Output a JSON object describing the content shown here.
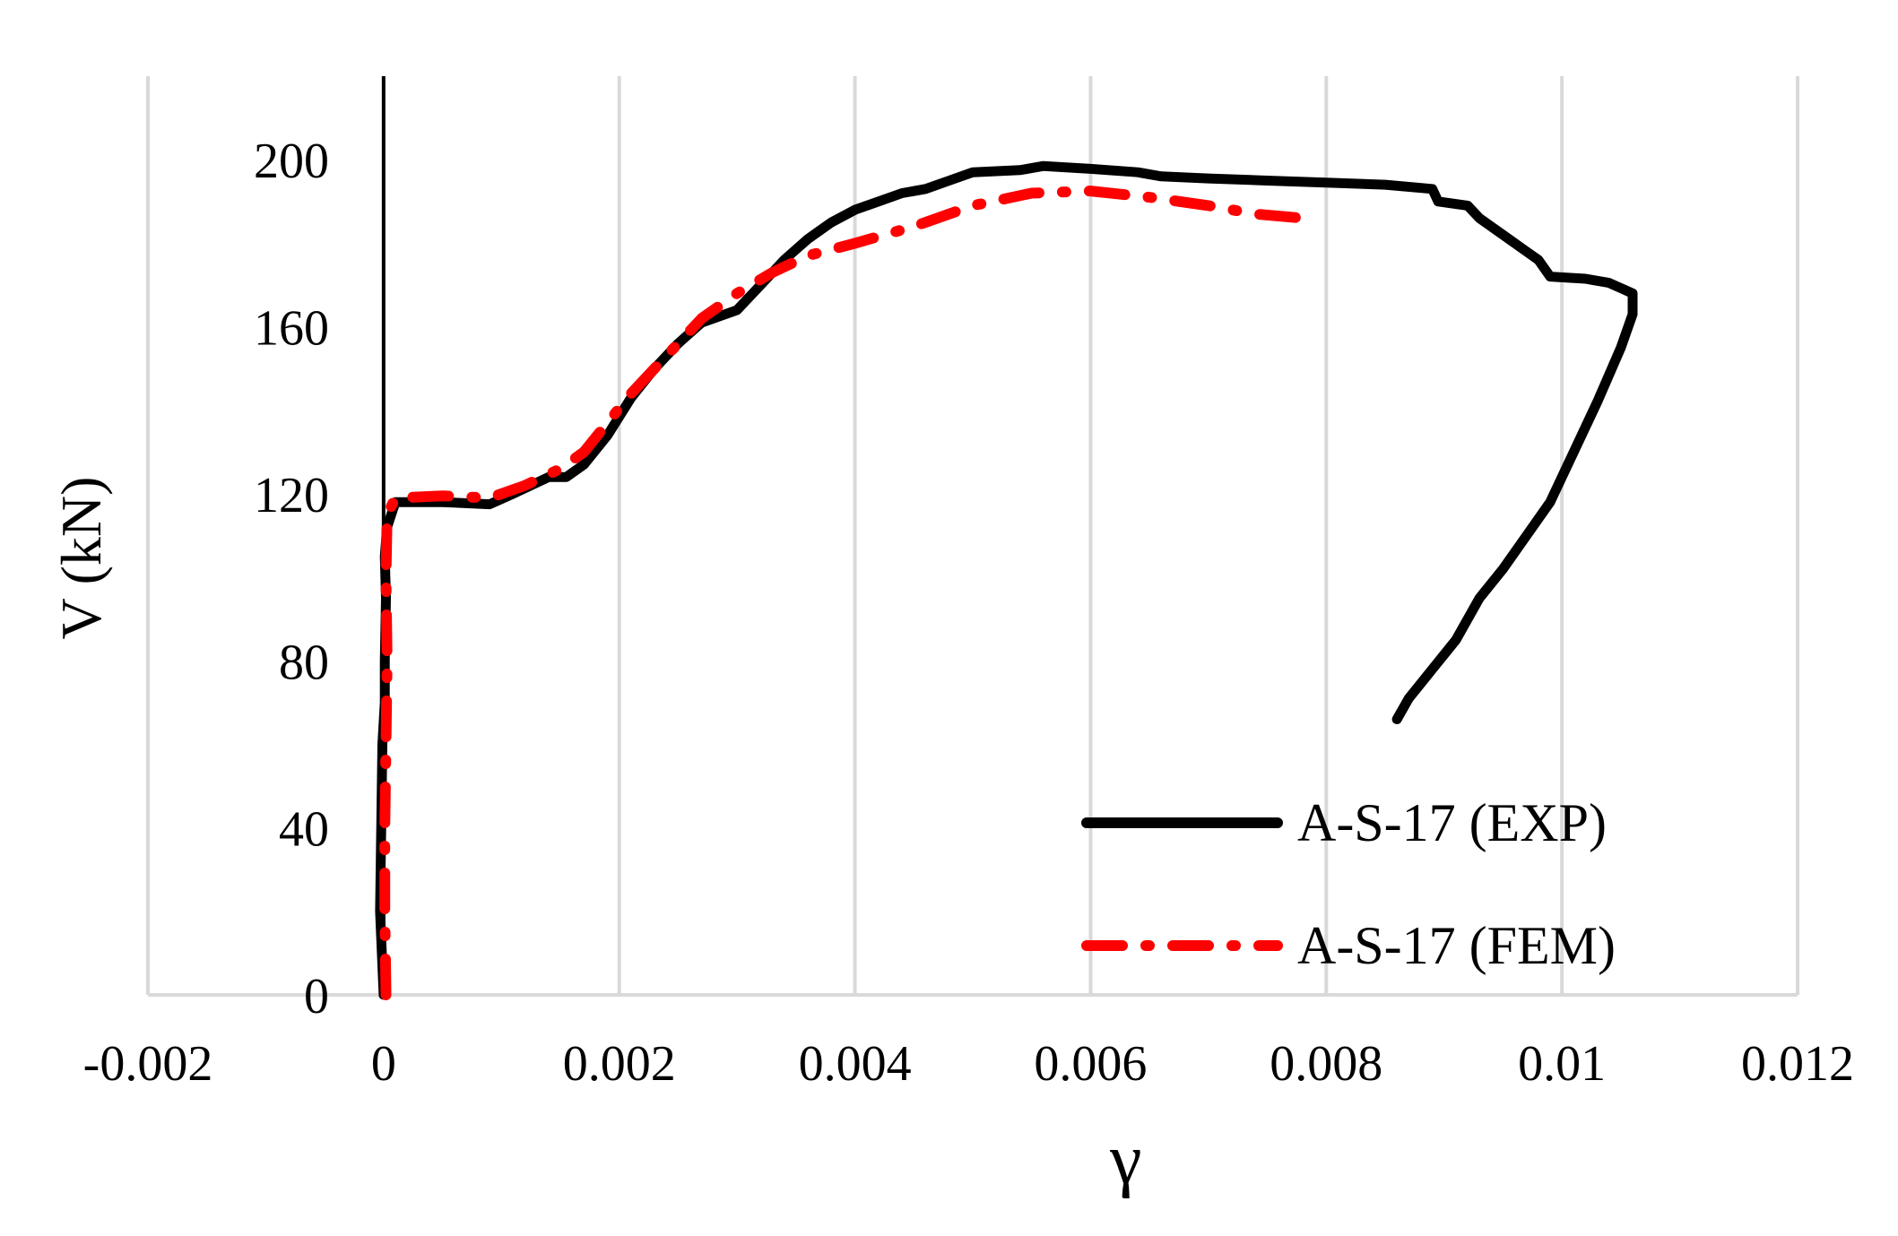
{
  "chart_data": {
    "type": "line",
    "title": "",
    "xlabel": "γ",
    "ylabel": "V (kN)",
    "xlim": [
      -0.002,
      0.012
    ],
    "ylim": [
      0,
      220
    ],
    "x_ticks": [
      -0.002,
      0,
      0.002,
      0.004,
      0.006,
      0.008,
      0.01,
      0.012
    ],
    "x_tick_labels": [
      "-0.002",
      "0",
      "0.002",
      "0.004",
      "0.006",
      "0.008",
      "0.01",
      "0.012"
    ],
    "y_ticks": [
      0,
      40,
      80,
      120,
      160,
      200
    ],
    "y_tick_labels": [
      "0",
      "40",
      "80",
      "120",
      "160",
      "200"
    ],
    "grid": "vertical",
    "legend_position": "bottom-right",
    "series": [
      {
        "name": "A-S-17 (EXP)",
        "color": "#000000",
        "style": "solid",
        "points": [
          [
            0.0,
            0
          ],
          [
            -3e-05,
            20
          ],
          [
            -2e-05,
            40
          ],
          [
            -1e-05,
            60
          ],
          [
            1e-05,
            70
          ],
          [
            1e-05,
            80
          ],
          [
            2e-05,
            95
          ],
          [
            1e-05,
            105
          ],
          [
            3e-05,
            112
          ],
          [
            0.0001,
            118
          ],
          [
            0.0005,
            118
          ],
          [
            0.0009,
            117.5
          ],
          [
            0.0011,
            120
          ],
          [
            0.0014,
            124
          ],
          [
            0.00155,
            124
          ],
          [
            0.0017,
            127
          ],
          [
            0.0019,
            134
          ],
          [
            0.0021,
            143
          ],
          [
            0.0023,
            150
          ],
          [
            0.0025,
            156
          ],
          [
            0.0027,
            161
          ],
          [
            0.003,
            164
          ],
          [
            0.0032,
            170
          ],
          [
            0.0034,
            176
          ],
          [
            0.0036,
            181
          ],
          [
            0.0038,
            185
          ],
          [
            0.004,
            188
          ],
          [
            0.0042,
            190
          ],
          [
            0.0044,
            192
          ],
          [
            0.0046,
            193
          ],
          [
            0.0048,
            195
          ],
          [
            0.005,
            197
          ],
          [
            0.0054,
            197.5
          ],
          [
            0.0056,
            198.5
          ],
          [
            0.006,
            197.8
          ],
          [
            0.0064,
            197
          ],
          [
            0.0066,
            196
          ],
          [
            0.007,
            195.5
          ],
          [
            0.0075,
            195
          ],
          [
            0.008,
            194.5
          ],
          [
            0.0085,
            194
          ],
          [
            0.0089,
            193
          ],
          [
            0.00895,
            190
          ],
          [
            0.0092,
            189
          ],
          [
            0.0093,
            186
          ],
          [
            0.0095,
            182
          ],
          [
            0.0097,
            178
          ],
          [
            0.0098,
            176
          ],
          [
            0.0099,
            172
          ],
          [
            0.0102,
            171.5
          ],
          [
            0.0104,
            170.5
          ],
          [
            0.0106,
            168
          ],
          [
            0.0106,
            163
          ],
          [
            0.0105,
            155
          ],
          [
            0.0103,
            142
          ],
          [
            0.0101,
            130
          ],
          [
            0.0099,
            118
          ],
          [
            0.0097,
            110
          ],
          [
            0.0095,
            102
          ],
          [
            0.0093,
            95
          ],
          [
            0.0091,
            85
          ],
          [
            0.0089,
            78
          ],
          [
            0.0087,
            71
          ],
          [
            0.0086,
            66
          ]
        ]
      },
      {
        "name": "A-S-17 (FEM)",
        "color": "#ff0000",
        "style": "dash-dot",
        "points": [
          [
            2e-05,
            0
          ],
          [
            1e-05,
            20
          ],
          [
            1e-05,
            40
          ],
          [
            2e-05,
            60
          ],
          [
            3e-05,
            80
          ],
          [
            2e-05,
            100
          ],
          [
            3e-05,
            115
          ],
          [
            0.0001,
            119
          ],
          [
            0.0005,
            119.5
          ],
          [
            0.0009,
            119
          ],
          [
            0.0012,
            122
          ],
          [
            0.0015,
            126
          ],
          [
            0.0017,
            130
          ],
          [
            0.0019,
            137
          ],
          [
            0.0021,
            144
          ],
          [
            0.0023,
            150
          ],
          [
            0.0025,
            156
          ],
          [
            0.0027,
            162
          ],
          [
            0.003,
            168
          ],
          [
            0.0033,
            173
          ],
          [
            0.0036,
            177
          ],
          [
            0.004,
            180
          ],
          [
            0.0045,
            184
          ],
          [
            0.005,
            189
          ],
          [
            0.0055,
            192
          ],
          [
            0.006,
            192.5
          ],
          [
            0.0065,
            191
          ],
          [
            0.007,
            189
          ],
          [
            0.0074,
            187
          ],
          [
            0.0078,
            186
          ]
        ]
      }
    ]
  }
}
